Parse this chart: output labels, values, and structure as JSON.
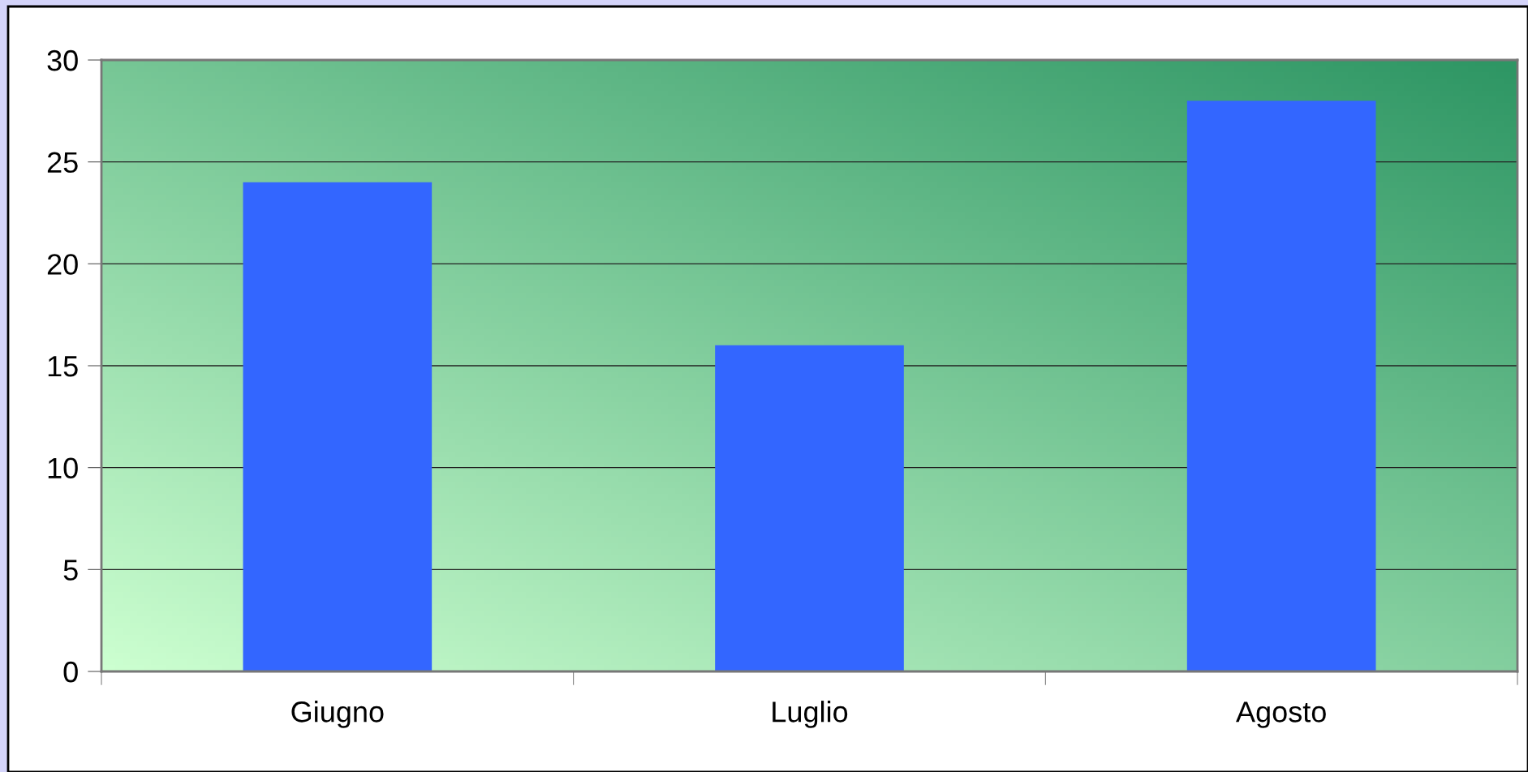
{
  "chart_data": {
    "type": "bar",
    "categories": [
      "Giugno",
      "Luglio",
      "Agosto"
    ],
    "values": [
      24,
      16,
      28
    ],
    "color": "#3366ff",
    "ylim": [
      0,
      30
    ],
    "yticks": [
      0,
      5,
      10,
      15,
      20,
      25,
      30
    ],
    "grid": "y",
    "legend": false
  }
}
